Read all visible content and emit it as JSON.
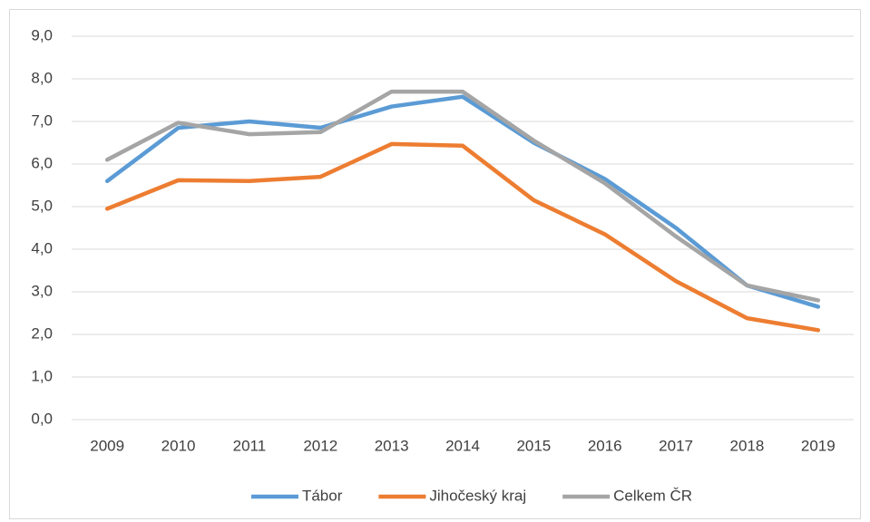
{
  "chart_data": {
    "type": "line",
    "categories": [
      "2009",
      "2010",
      "2011",
      "2012",
      "2013",
      "2014",
      "2015",
      "2016",
      "2017",
      "2018",
      "2019"
    ],
    "series": [
      {
        "name": "Tábor",
        "color": "#5b9bd5",
        "values": [
          5.6,
          6.85,
          7.0,
          6.85,
          7.35,
          7.58,
          6.5,
          5.65,
          4.5,
          3.15,
          2.65
        ]
      },
      {
        "name": "Jihočeský kraj",
        "color": "#ed7d31",
        "values": [
          4.95,
          5.62,
          5.6,
          5.7,
          6.47,
          6.43,
          5.15,
          4.35,
          3.25,
          2.38,
          2.1
        ]
      },
      {
        "name": "Celkem ČR",
        "color": "#a5a5a5",
        "values": [
          6.1,
          6.97,
          6.7,
          6.75,
          7.7,
          7.7,
          6.55,
          5.55,
          4.3,
          3.15,
          2.8
        ]
      }
    ],
    "ylim": [
      0,
      9
    ],
    "yticks": [
      {
        "value": 0,
        "label": "0,0"
      },
      {
        "value": 1,
        "label": "1,0"
      },
      {
        "value": 2,
        "label": "2,0"
      },
      {
        "value": 3,
        "label": "3,0"
      },
      {
        "value": 4,
        "label": "4,0"
      },
      {
        "value": 5,
        "label": "5,0"
      },
      {
        "value": 6,
        "label": "6,0"
      },
      {
        "value": 7,
        "label": "7,0"
      },
      {
        "value": 8,
        "label": "8,0"
      },
      {
        "value": 9,
        "label": "9,0"
      }
    ],
    "grid": true,
    "legend": "bottom"
  }
}
